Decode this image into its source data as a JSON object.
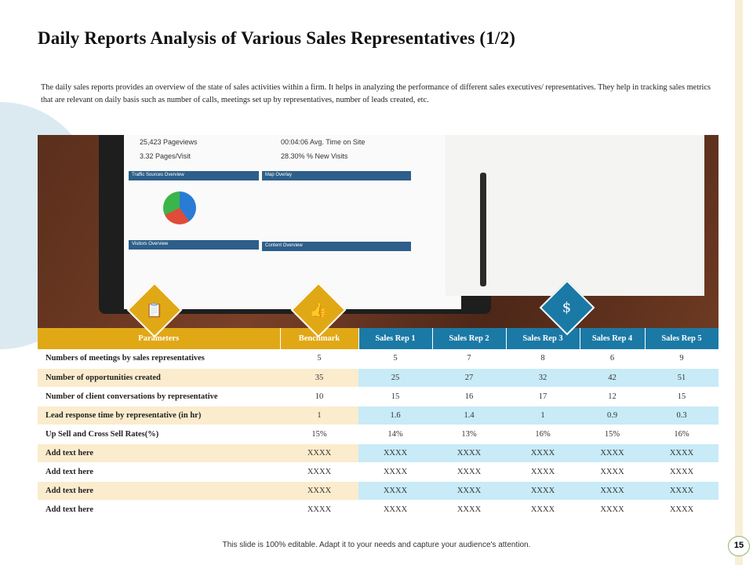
{
  "title": "Daily Reports Analysis of  Various Sales Representatives (1/2)",
  "intro": "The daily sales reports provides an overview of the state of sales activities within a firm. It helps in analyzing the performance of different sales executives/ representatives. They help in tracking sales metrics that are relevant on daily basis such as number of calls, meetings set up by representatives, number of leads created, etc.",
  "photo": {
    "stat1": "25,423 Pageviews",
    "stat2": "3.32 Pages/Visit",
    "stat3": "00:04:06 Avg. Time on Site",
    "stat4": "28.30% % New Visits",
    "panel1": "Traffic Sources Overview",
    "panel2": "Map Overlay",
    "panel3": "Visitors Overview",
    "panel4": "Content Overview"
  },
  "table": {
    "headers": [
      "Parameters",
      "Benchmark",
      "Sales Rep 1",
      "Sales Rep 2",
      "Sales Rep 3",
      "Sales Rep 4",
      "Sales Rep 5"
    ],
    "rows": [
      [
        "Numbers of meetings by sales representatives",
        "5",
        "5",
        "7",
        "8",
        "6",
        "9"
      ],
      [
        "Number of opportunities created",
        "35",
        "25",
        "27",
        "32",
        "42",
        "51"
      ],
      [
        "Number of client conversations by representative",
        "10",
        "15",
        "16",
        "17",
        "12",
        "15"
      ],
      [
        "Lead response time by representative (in hr)",
        "1",
        "1.6",
        "1.4",
        "1",
        "0.9",
        "0.3"
      ],
      [
        "Up Sell and Cross Sell Rates(%)",
        "15%",
        "14%",
        "13%",
        "16%",
        "15%",
        "16%"
      ],
      [
        "Add text here",
        "XXXX",
        "XXXX",
        "XXXX",
        "XXXX",
        "XXXX",
        "XXXX"
      ],
      [
        "Add text here",
        "XXXX",
        "XXXX",
        "XXXX",
        "XXXX",
        "XXXX",
        "XXXX"
      ],
      [
        "Add text here",
        "XXXX",
        "XXXX",
        "XXXX",
        "XXXX",
        "XXXX",
        "XXXX"
      ],
      [
        "Add text here",
        "XXXX",
        "XXXX",
        "XXXX",
        "XXXX",
        "XXXX",
        "XXXX"
      ]
    ]
  },
  "footer": "This slide is 100% editable. Adapt it to your needs and capture your audience's attention.",
  "page_number": "15",
  "colors": {
    "gold": "#e1a816",
    "blue": "#1b79a6",
    "beige": "#fbecce",
    "lightblue": "#c8ebf7"
  }
}
